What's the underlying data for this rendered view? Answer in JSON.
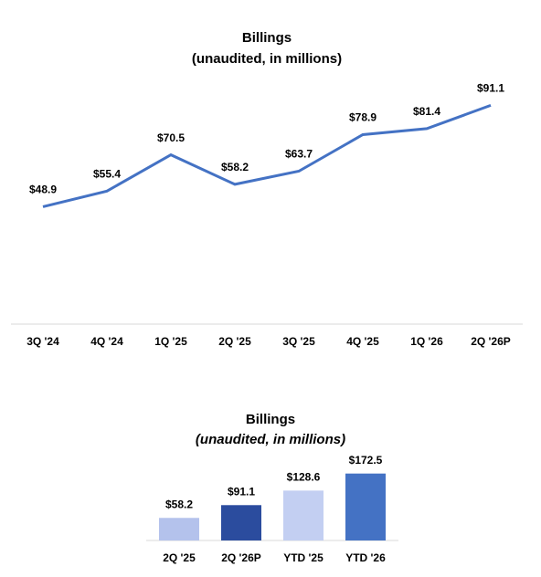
{
  "chart_data": [
    {
      "type": "line",
      "title": "Billings",
      "subtitle": "(unaudited, in millions)",
      "categories": [
        "3Q '24",
        "4Q '24",
        "1Q '25",
        "2Q '25",
        "3Q '25",
        "4Q '25",
        "1Q '26",
        "2Q '26P"
      ],
      "values": [
        48.9,
        55.4,
        70.5,
        58.2,
        63.7,
        78.9,
        81.4,
        91.1
      ],
      "value_labels": [
        "$48.9",
        "$55.4",
        "$70.5",
        "$58.2",
        "$63.7",
        "$78.9",
        "$81.4",
        "$91.1"
      ],
      "color": "#4472c4",
      "ylim": [
        0,
        100
      ]
    },
    {
      "type": "bar",
      "title": "Billings",
      "subtitle": "(unaudited, in millions)",
      "categories": [
        "2Q '25",
        "2Q '26P",
        "YTD '25",
        "YTD '26"
      ],
      "values": [
        58.2,
        91.1,
        128.6,
        172.5
      ],
      "value_labels": [
        "$58.2",
        "$91.1",
        "$128.6",
        "$172.5"
      ],
      "colors": [
        "#b4c2ec",
        "#2b4c9e",
        "#c3cff2",
        "#4472c4"
      ],
      "ylim": [
        0,
        200
      ]
    }
  ]
}
